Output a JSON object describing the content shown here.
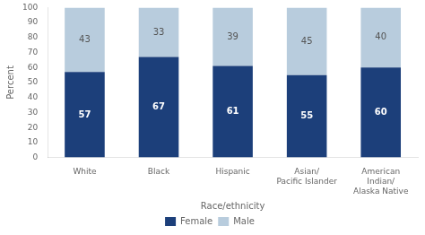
{
  "chart_data": {
    "type": "bar",
    "categories": [
      "White",
      "Black",
      "Hispanic",
      "Asian/\nPacific Islander",
      "American\nIndian/\nAlaska Native"
    ],
    "series": [
      {
        "name": "Female",
        "color": "#1c3f7a",
        "values": [
          57,
          67,
          61,
          55,
          60
        ]
      },
      {
        "name": "Male",
        "color": "#b8ccdd",
        "values": [
          43,
          33,
          39,
          45,
          40
        ]
      }
    ],
    "xlabel": "Race/ethnicity",
    "ylabel": "Percent",
    "ylim": [
      0,
      100
    ],
    "yticks": [
      0,
      10,
      20,
      30,
      40,
      50,
      60,
      70,
      80,
      90,
      100
    ],
    "stacked": true,
    "data_labels": true,
    "grid": false,
    "legend": "bottom"
  }
}
